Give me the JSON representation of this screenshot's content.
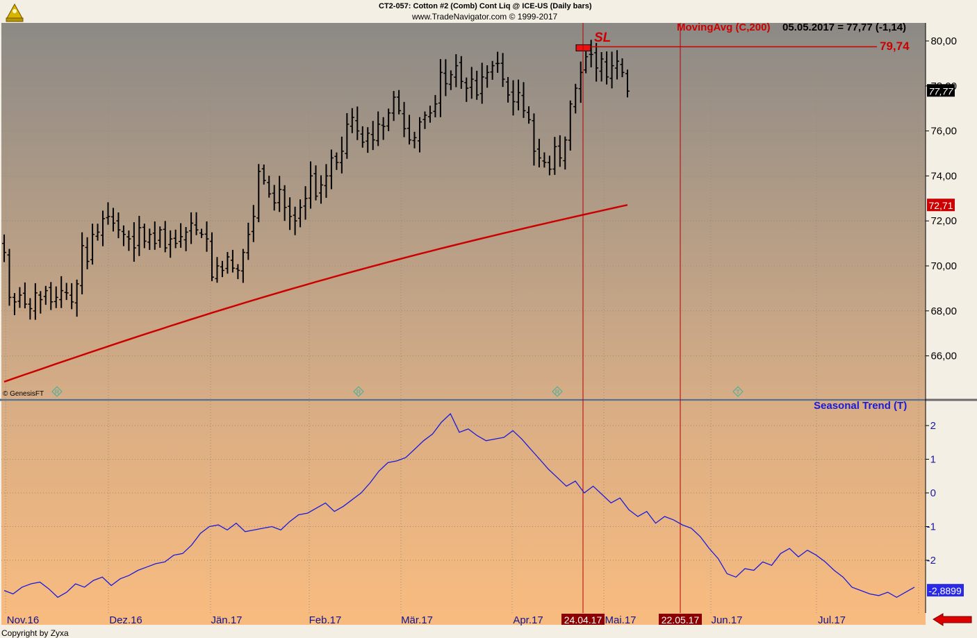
{
  "header": {
    "title": "CT2-057:  Cotton #2 (Comb) Cont Liq @ ICE-US  (Daily bars)",
    "url": "www.TradeNavigator.com © 1999-2017"
  },
  "indicator": {
    "label": "MovingAvg (C,200)",
    "readout": "05.05.2017 = 77,77 (-1,14)"
  },
  "stop_loss": {
    "label": "SL",
    "value": "79,74"
  },
  "price_badges": {
    "last": "77,77",
    "moving_avg": "72,71"
  },
  "seasonal": {
    "label": "Seasonal Trend (T)",
    "last": "-2,8899"
  },
  "watermark": "© GenesisFT",
  "copyright": "Copyright by Zyxa",
  "colors": {
    "bar": "#000000",
    "moving_avg": "#cc0000",
    "stop_loss": "#cc0000",
    "seasonal": "#1a1adc",
    "marker_line": "#b30000",
    "grid": "#9a8a74",
    "date_badge_bg": "#8b0000",
    "right_arrow": "#dd0000"
  },
  "icons": [
    "logo-icon",
    "right-arrow-icon",
    "r-marker-icon",
    "t-marker-icon"
  ],
  "chart_data": [
    {
      "type": "bar",
      "subtype": "ohlc",
      "title": "CT2-057:  Cotton #2 (Comb) Cont Liq @ ICE-US  (Daily bars)",
      "x_tick_labels": [
        "Nov.16",
        "Dez.16",
        "Jän.17",
        "Feb.17",
        "Mär.17",
        "Apr.17",
        "Mai.17",
        "Jun.17",
        "Jul.17"
      ],
      "date_markers": [
        "24.04.17",
        "22.05.17"
      ],
      "ylim": [
        64.6,
        80.7
      ],
      "y_ticks": [
        "66,00",
        "68,00",
        "70,00",
        "72,00",
        "74,00",
        "76,00",
        "78,00",
        "80,00"
      ],
      "grid": true,
      "close_series": [
        70.6,
        68.6,
        68.4,
        68.7,
        68.3,
        68.1,
        68.8,
        68.5,
        68.9,
        68.4,
        68.6,
        68.9,
        68.8,
        68.4,
        69.2,
        70.9,
        70.2,
        71.4,
        71.5,
        72.1,
        72.2,
        71.9,
        71.6,
        71.4,
        71.2,
        70.8,
        71.7,
        71.1,
        71.4,
        71.0,
        71.6,
        70.8,
        71.2,
        71.0,
        71.3,
        71.5,
        71.9,
        71.6,
        71.4,
        71.2,
        69.5,
        70.0,
        69.8,
        70.4,
        69.9,
        69.8,
        70.6,
        71.4,
        72.2,
        74.2,
        73.8,
        73.2,
        72.8,
        73.4,
        72.6,
        72.2,
        72.0,
        72.6,
        73.0,
        74.0,
        73.1,
        73.6,
        74.0,
        74.8,
        74.6,
        75.1,
        76.3,
        76.6,
        76.0,
        75.5,
        75.9,
        75.6,
        76.3,
        76.2,
        76.8,
        77.5,
        76.9,
        76.1,
        75.6,
        75.7,
        76.4,
        76.7,
        76.8,
        77.2,
        78.6,
        78.1,
        78.5,
        78.9,
        78.2,
        77.9,
        78.3,
        77.6,
        78.4,
        78.6,
        78.9,
        79.0,
        78.3,
        77.6,
        77.3,
        77.7,
        76.9,
        76.5,
        75.1,
        74.8,
        74.6,
        74.3,
        75.3,
        74.8,
        75.6,
        77.2,
        77.9,
        78.6,
        79.3,
        79.4,
        78.8,
        79.2,
        78.4,
        78.9,
        79.1,
        78.6,
        77.77
      ],
      "moving_average": {
        "name": "MovingAvg (C,200)",
        "start": 64.85,
        "end": 72.71
      },
      "stop_loss": 79.74,
      "last_price": 77.77,
      "annotations": [
        "SL",
        "79,74"
      ]
    },
    {
      "type": "line",
      "title": "Seasonal Trend (T)",
      "x_tick_labels": [
        "Nov.16",
        "Dez.16",
        "Jän.17",
        "Feb.17",
        "Mär.17",
        "Apr.17",
        "Mai.17",
        "Jun.17",
        "Jul.17"
      ],
      "ylim": [
        -3.6,
        2.6
      ],
      "y_ticks": [
        "2",
        "1",
        "0",
        "-1",
        "-2"
      ],
      "grid": true,
      "series": [
        {
          "values": [
            -2.9,
            -3.0,
            -2.8,
            -2.7,
            -2.65,
            -2.85,
            -3.1,
            -2.95,
            -2.7,
            -2.8,
            -2.6,
            -2.5,
            -2.75,
            -2.55,
            -2.45,
            -2.3,
            -2.2,
            -2.1,
            -2.05,
            -1.85,
            -1.8,
            -1.55,
            -1.2,
            -1.0,
            -0.95,
            -1.1,
            -0.9,
            -1.15,
            -1.1,
            -1.05,
            -1.0,
            -1.1,
            -0.85,
            -0.65,
            -0.6,
            -0.45,
            -0.3,
            -0.55,
            -0.4,
            -0.2,
            0.0,
            0.3,
            0.65,
            0.9,
            0.95,
            1.05,
            1.3,
            1.55,
            1.75,
            2.1,
            2.35,
            1.8,
            1.9,
            1.7,
            1.55,
            1.6,
            1.65,
            1.85,
            1.6,
            1.3,
            1.0,
            0.7,
            0.45,
            0.2,
            0.35,
            0.0,
            0.2,
            -0.05,
            -0.3,
            -0.15,
            -0.5,
            -0.7,
            -0.55,
            -0.9,
            -0.7,
            -0.8,
            -0.95,
            -1.05,
            -1.3,
            -1.65,
            -1.95,
            -2.4,
            -2.5,
            -2.25,
            -2.3,
            -2.05,
            -2.15,
            -1.8,
            -1.65,
            -1.9,
            -1.7,
            -1.85,
            -2.05,
            -2.3,
            -2.5,
            -2.8,
            -2.9,
            -3.0,
            -3.05,
            -2.95,
            -3.1,
            -2.95,
            -2.8
          ],
          "last": -2.8899
        }
      ]
    }
  ]
}
